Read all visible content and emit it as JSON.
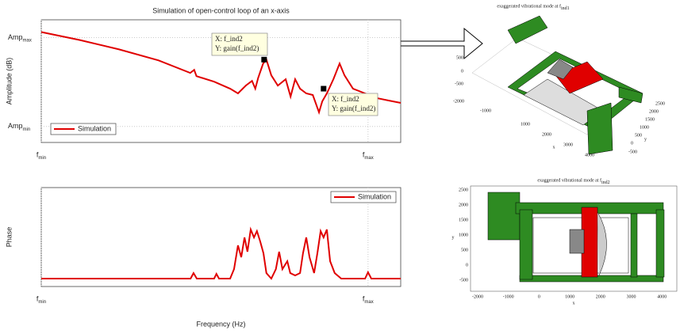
{
  "chart_data": [
    {
      "type": "line",
      "title": "Simulation of open-control loop of an x-axis",
      "ylabel": "Amplitude (dB)",
      "xlim": [
        0,
        110
      ],
      "xticks": [
        {
          "value": 0,
          "label": "f",
          "sub": "min"
        },
        {
          "value": 100,
          "label": "f",
          "sub": "max"
        }
      ],
      "ylim": [
        -18,
        120
      ],
      "yticks": [
        {
          "value": 0,
          "label": "Amp",
          "sub": "min"
        },
        {
          "value": 100,
          "label": "Amp",
          "sub": "max"
        }
      ],
      "grid": true,
      "legend": "lower left",
      "series": [
        {
          "name": "Simulation",
          "color": "#e00000",
          "x": [
            0,
            11.7,
            23.8,
            35.9,
            45.6,
            46.8,
            47.5,
            52.9,
            57.8,
            60.2,
            62.6,
            64.5,
            65.5,
            66.4,
            67.9,
            68.9,
            70.4,
            72.4,
            74.8,
            76.3,
            77.7,
            79.2,
            81.1,
            83.1,
            85.0,
            86.0,
            87.4,
            89.4,
            91.3,
            92.8,
            95.4,
            99.1,
            102.7,
            106.3,
            110
          ],
          "values": [
            106.2,
            97.3,
            86.7,
            74.3,
            60.2,
            63.7,
            56.6,
            50.4,
            42.5,
            37.2,
            46.0,
            51.3,
            42.5,
            54.9,
            70.8,
            75.2,
            57.5,
            46.0,
            53.1,
            33.6,
            53.1,
            42.5,
            37.2,
            35.4,
            15.9,
            28.3,
            37.2,
            53.1,
            70.8,
            57.5,
            42.5,
            37.2,
            31.9,
            29.2,
            26.5
          ]
        }
      ],
      "datatips": [
        {
          "x": 68.2,
          "y": 75.2,
          "lines": [
            "X: f_ind2",
            "Y: gain(f_ind2)"
          ]
        },
        {
          "x": 86.4,
          "y": 42.5,
          "lines": [
            "X: f_ind2",
            "Y: gain(f_ind2)"
          ]
        }
      ]
    },
    {
      "type": "line",
      "xlabel": "Frequency (Hz)",
      "ylabel": "Phase",
      "xlim": [
        0,
        110
      ],
      "xticks": [
        {
          "value": 0,
          "label": "f",
          "sub": "min"
        },
        {
          "value": 100,
          "label": "f",
          "sub": "max"
        }
      ],
      "ylim": [
        0,
        100
      ],
      "grid": true,
      "legend": "upper right",
      "series": [
        {
          "name": "Simulation",
          "color": "#e00000",
          "x": [
            0,
            45.7,
            46.6,
            47.6,
            52.9,
            53.6,
            54.4,
            57.8,
            59.0,
            60.2,
            61.2,
            62.2,
            63.1,
            64.1,
            65.1,
            66.0,
            67.0,
            68.0,
            68.9,
            70.4,
            71.8,
            72.8,
            73.8,
            75.3,
            76.2,
            77.7,
            79.2,
            80.1,
            81.1,
            82.1,
            83.5,
            84.5,
            85.5,
            86.4,
            87.4,
            88.4,
            89.8,
            91.8,
            99.1,
            100.0,
            101.0,
            110
          ],
          "values": [
            8,
            8,
            13.6,
            8,
            8,
            12.8,
            8,
            8,
            17.6,
            41.6,
            29.6,
            49.6,
            35.2,
            57.6,
            49.6,
            56,
            45.6,
            33.6,
            13.6,
            8,
            17.6,
            35.2,
            17.6,
            25.6,
            13.6,
            11.2,
            13.6,
            33.6,
            49.6,
            29.6,
            13.6,
            33.6,
            56,
            49.6,
            57.6,
            25.6,
            13.6,
            8,
            8,
            14.4,
            8,
            8
          ]
        }
      ]
    }
  ],
  "renders": [
    {
      "title": "exaggerated vibrational mode at f",
      "title_sub": "ind1",
      "zticks": [
        500,
        0,
        -500
      ],
      "xticks": [
        -2000,
        -1000,
        1000,
        2000,
        3000,
        4000
      ],
      "yticks": [
        -500,
        0,
        500,
        1000,
        1500,
        2000,
        2500
      ],
      "xlabel": "x",
      "ylabel": "y"
    },
    {
      "title": "exaggerated vibrational mode at f",
      "title_sub": "ind2",
      "xticks": [
        -2000,
        -1000,
        0,
        1000,
        2000,
        3000,
        4000
      ],
      "yticks": [
        2500,
        2000,
        1500,
        1000,
        500,
        0,
        -500
      ],
      "xlabel": "x",
      "ylabel": "y"
    }
  ]
}
